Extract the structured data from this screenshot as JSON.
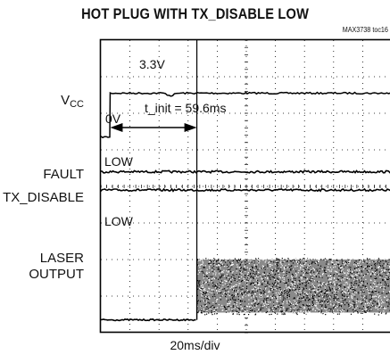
{
  "chart_data": {
    "type": "line",
    "title": "HOT PLUG WITH TX_DISABLE LOW",
    "part_number": "MAX3738 toc16",
    "xlabel": "20ms/div",
    "x_divisions": 10,
    "y_divisions": 8,
    "grid": true,
    "channels": [
      {
        "name": "VCC",
        "name_main": "V",
        "name_sub": "CC",
        "high_label": "3.3V",
        "low_label": "0V",
        "step_time_div": 0.32,
        "low_level_div": 5.35,
        "high_level_div": 6.55
      },
      {
        "name": "FAULT",
        "state_label": "LOW",
        "level_div": 4.4
      },
      {
        "name": "TX_DISABLE",
        "state_label": "LOW",
        "level_div": 3.9
      },
      {
        "name": "LASER OUTPUT",
        "name_line1": "LASER",
        "name_line2": "OUTPUT",
        "turn_on_time_div": 3.3,
        "off_level_div": 0.35,
        "on_low_div": 0.55,
        "on_high_div": 2.0
      }
    ],
    "annotation": {
      "label": "t_init = 59.6ms",
      "t_start_div": 0.32,
      "t_end_div": 3.3,
      "unit": "ms"
    }
  }
}
